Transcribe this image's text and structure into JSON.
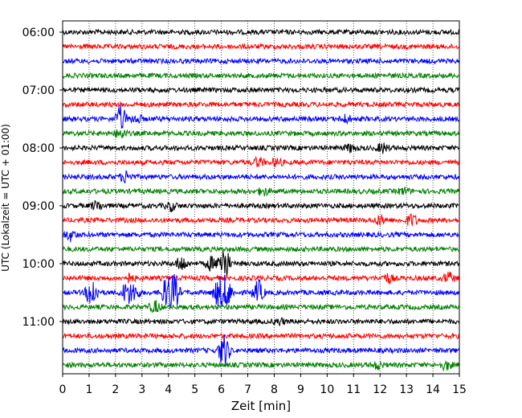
{
  "chart_data": {
    "type": "line",
    "title": "",
    "xlabel": "Zeit  [min]",
    "ylabel": "UTC (Lokalzeit = UTC + 01:00)",
    "xlim": [
      0,
      15
    ],
    "x_ticks": [
      0,
      1,
      2,
      3,
      4,
      5,
      6,
      7,
      8,
      9,
      10,
      11,
      12,
      13,
      14,
      15
    ],
    "x_tick_labels": [
      "0",
      "1",
      "2",
      "3",
      "4",
      "5",
      "6",
      "7",
      "8",
      "9",
      "10",
      "11",
      "12",
      "13",
      "14",
      "15"
    ],
    "y_tick_labels": [
      "06:00",
      "07:00",
      "08:00",
      "09:00",
      "10:00",
      "11:00"
    ],
    "trace_minutes": 15,
    "grid": "vertical dotted lines at each minute",
    "trace_colors": [
      "#000000",
      "#ff0000",
      "#0000ff",
      "#008000"
    ],
    "traces": [
      {
        "start": "06:00",
        "color": "#000000"
      },
      {
        "start": "06:15",
        "color": "#ff0000"
      },
      {
        "start": "06:30",
        "color": "#0000ff"
      },
      {
        "start": "06:45",
        "color": "#008000"
      },
      {
        "start": "07:00",
        "color": "#000000"
      },
      {
        "start": "07:15",
        "color": "#ff0000"
      },
      {
        "start": "07:30",
        "color": "#0000ff",
        "events": [
          {
            "x": 2.2,
            "amp": 1.8
          },
          {
            "x": 2.8,
            "amp": 0.6
          },
          {
            "x": 10.7,
            "amp": 0.5
          }
        ]
      },
      {
        "start": "07:45",
        "color": "#008000",
        "events": [
          {
            "x": 2.2,
            "amp": 0.7
          }
        ]
      },
      {
        "start": "08:00",
        "color": "#000000",
        "events": [
          {
            "x": 10.9,
            "amp": 0.5
          },
          {
            "x": 12.1,
            "amp": 0.6
          }
        ]
      },
      {
        "start": "08:15",
        "color": "#ff0000",
        "events": [
          {
            "x": 7.4,
            "amp": 0.6
          },
          {
            "x": 8.1,
            "amp": 0.5
          }
        ]
      },
      {
        "start": "08:30",
        "color": "#0000ff",
        "events": [
          {
            "x": 2.4,
            "amp": 0.8
          }
        ]
      },
      {
        "start": "08:45",
        "color": "#008000",
        "events": [
          {
            "x": 7.6,
            "amp": 0.5
          },
          {
            "x": 12.9,
            "amp": 0.4
          }
        ]
      },
      {
        "start": "09:00",
        "color": "#000000",
        "events": [
          {
            "x": 1.3,
            "amp": 0.6
          },
          {
            "x": 4.1,
            "amp": 0.6
          }
        ]
      },
      {
        "start": "09:15",
        "color": "#ff0000",
        "events": [
          {
            "x": 12.0,
            "amp": 0.6
          },
          {
            "x": 13.2,
            "amp": 0.8
          }
        ]
      },
      {
        "start": "09:30",
        "color": "#0000ff",
        "events": [
          {
            "x": 0.3,
            "amp": 0.7
          }
        ]
      },
      {
        "start": "09:45",
        "color": "#008000"
      },
      {
        "start": "10:00",
        "color": "#000000",
        "events": [
          {
            "x": 4.5,
            "amp": 1.0
          },
          {
            "x": 5.6,
            "amp": 0.9
          },
          {
            "x": 6.1,
            "amp": 2.8
          }
        ]
      },
      {
        "start": "10:15",
        "color": "#ff0000",
        "events": [
          {
            "x": 2.5,
            "amp": 0.5
          },
          {
            "x": 12.3,
            "amp": 0.6
          },
          {
            "x": 14.6,
            "amp": 0.7
          }
        ]
      },
      {
        "start": "10:30",
        "color": "#0000ff",
        "events": [
          {
            "x": 1.1,
            "amp": 2.3
          },
          {
            "x": 2.4,
            "amp": 1.4
          },
          {
            "x": 2.7,
            "amp": 1.2
          },
          {
            "x": 3.9,
            "amp": 1.8
          },
          {
            "x": 4.2,
            "amp": 2.6
          },
          {
            "x": 5.9,
            "amp": 2.0
          },
          {
            "x": 6.2,
            "amp": 2.2
          },
          {
            "x": 7.4,
            "amp": 1.7
          }
        ]
      },
      {
        "start": "10:45",
        "color": "#008000",
        "events": [
          {
            "x": 3.5,
            "amp": 0.8
          }
        ]
      },
      {
        "start": "11:00",
        "color": "#000000",
        "events": [
          {
            "x": 8.2,
            "amp": 0.4
          }
        ]
      },
      {
        "start": "11:15",
        "color": "#ff0000"
      },
      {
        "start": "11:30",
        "color": "#0000ff",
        "events": [
          {
            "x": 6.1,
            "amp": 2.4
          }
        ]
      },
      {
        "start": "11:45",
        "color": "#008000",
        "events": [
          {
            "x": 11.9,
            "amp": 0.5
          },
          {
            "x": 14.5,
            "amp": 0.6
          }
        ]
      }
    ]
  }
}
